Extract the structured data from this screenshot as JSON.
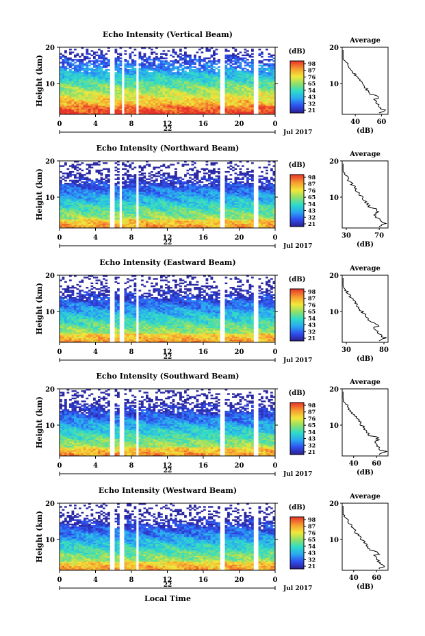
{
  "figure": {
    "xlabel_bottom": "Local Time",
    "date_label": "Jul 2017"
  },
  "chart_data": [
    {
      "type": "heatmap",
      "title": "Echo Intensity (Vertical Beam)",
      "ylabel": "Height (km)",
      "x_ticks": [
        "0",
        "4",
        "8",
        "12",
        "16",
        "20",
        "0"
      ],
      "xlim": [
        0,
        24
      ],
      "ylim": [
        1.5,
        20
      ],
      "y_ticks": [
        "20",
        "10"
      ],
      "day_label": "22",
      "gaps": [
        [
          5.6,
          6.2
        ],
        [
          6.9,
          7.3
        ],
        [
          8.4,
          8.9
        ],
        [
          18.0,
          18.5
        ],
        [
          21.7,
          22.1
        ]
      ],
      "colorbar": {
        "unit": "(dB)",
        "ticks": [
          "98",
          "87",
          "76",
          "65",
          "54",
          "43",
          "32",
          "21"
        ]
      },
      "average": {
        "title": "Average",
        "xlabel": "(dB)",
        "x_ticks": [
          "40",
          "60"
        ],
        "xlim": [
          30,
          65
        ],
        "y_ticks": [
          "20",
          "10"
        ]
      }
    },
    {
      "type": "heatmap",
      "title": "Echo Intensity (Northward Beam)",
      "ylabel": "Height (km)",
      "x_ticks": [
        "0",
        "4",
        "8",
        "12",
        "16",
        "20",
        "0"
      ],
      "xlim": [
        0,
        24
      ],
      "ylim": [
        1.5,
        20
      ],
      "y_ticks": [
        "20",
        "10"
      ],
      "day_label": "22",
      "gaps": [
        [
          5.6,
          6.0
        ],
        [
          6.7,
          7.0
        ],
        [
          8.4,
          8.8
        ],
        [
          17.9,
          18.4
        ],
        [
          21.6,
          22.0
        ]
      ],
      "colorbar": {
        "unit": "(dB)",
        "ticks": [
          "98",
          "87",
          "76",
          "65",
          "54",
          "43",
          "32",
          "21"
        ]
      },
      "average": {
        "title": "Average",
        "xlabel": "(dB)",
        "x_ticks": [
          "30",
          "70"
        ],
        "xlim": [
          28,
          80
        ],
        "y_ticks": [
          "20",
          "10"
        ]
      }
    },
    {
      "type": "heatmap",
      "title": "Echo Intensity (Eastward Beam)",
      "ylabel": "Height (km)",
      "x_ticks": [
        "0",
        "4",
        "8",
        "12",
        "16",
        "20",
        "0"
      ],
      "xlim": [
        0,
        24
      ],
      "ylim": [
        1.5,
        20
      ],
      "y_ticks": [
        "20",
        "10"
      ],
      "day_label": "22",
      "gaps": [
        [
          5.6,
          6.1
        ],
        [
          6.8,
          7.1
        ],
        [
          8.4,
          8.8
        ],
        [
          17.9,
          18.4
        ],
        [
          21.6,
          22.0
        ]
      ],
      "colorbar": {
        "unit": "(dB)",
        "ticks": [
          "98",
          "87",
          "76",
          "65",
          "54",
          "43",
          "32",
          "21"
        ]
      },
      "average": {
        "title": "Average",
        "xlabel": "(dB)",
        "x_ticks": [
          "30",
          "80"
        ],
        "xlim": [
          28,
          82
        ],
        "y_ticks": [
          "20",
          "10"
        ]
      }
    },
    {
      "type": "heatmap",
      "title": "Echo Intensity (Southward Beam)",
      "ylabel": "Height (km)",
      "x_ticks": [
        "0",
        "4",
        "8",
        "12",
        "16",
        "20",
        "0"
      ],
      "xlim": [
        0,
        24
      ],
      "ylim": [
        1.5,
        20
      ],
      "y_ticks": [
        "20",
        "10"
      ],
      "day_label": "22",
      "gaps": [
        [
          5.6,
          6.1
        ],
        [
          6.8,
          7.1
        ],
        [
          8.4,
          8.8
        ],
        [
          17.9,
          18.4
        ],
        [
          21.6,
          22.0
        ]
      ],
      "colorbar": {
        "unit": "(dB)",
        "ticks": [
          "98",
          "87",
          "76",
          "65",
          "54",
          "43",
          "32",
          "21"
        ]
      },
      "average": {
        "title": "Average",
        "xlabel": "(dB)",
        "x_ticks": [
          "40",
          "60"
        ],
        "xlim": [
          30,
          70
        ],
        "y_ticks": [
          "20",
          "10"
        ]
      }
    },
    {
      "type": "heatmap",
      "title": "Echo Intensity (Westward Beam)",
      "ylabel": "Height (km)",
      "x_ticks": [
        "0",
        "4",
        "8",
        "12",
        "16",
        "20",
        "0"
      ],
      "xlim": [
        0,
        24
      ],
      "ylim": [
        1.5,
        20
      ],
      "y_ticks": [
        "20",
        "10"
      ],
      "day_label": "22",
      "gaps": [
        [
          5.6,
          6.1
        ],
        [
          6.8,
          7.1
        ],
        [
          8.4,
          8.8
        ],
        [
          17.9,
          18.4
        ],
        [
          21.6,
          22.0
        ]
      ],
      "colorbar": {
        "unit": "(dB)",
        "ticks": [
          "98",
          "87",
          "76",
          "65",
          "54",
          "43",
          "32",
          "21"
        ]
      },
      "average": {
        "title": "Average",
        "xlabel": "(dB)",
        "x_ticks": [
          "40",
          "60"
        ],
        "xlim": [
          30,
          70
        ],
        "y_ticks": [
          "20",
          "10"
        ]
      }
    }
  ]
}
